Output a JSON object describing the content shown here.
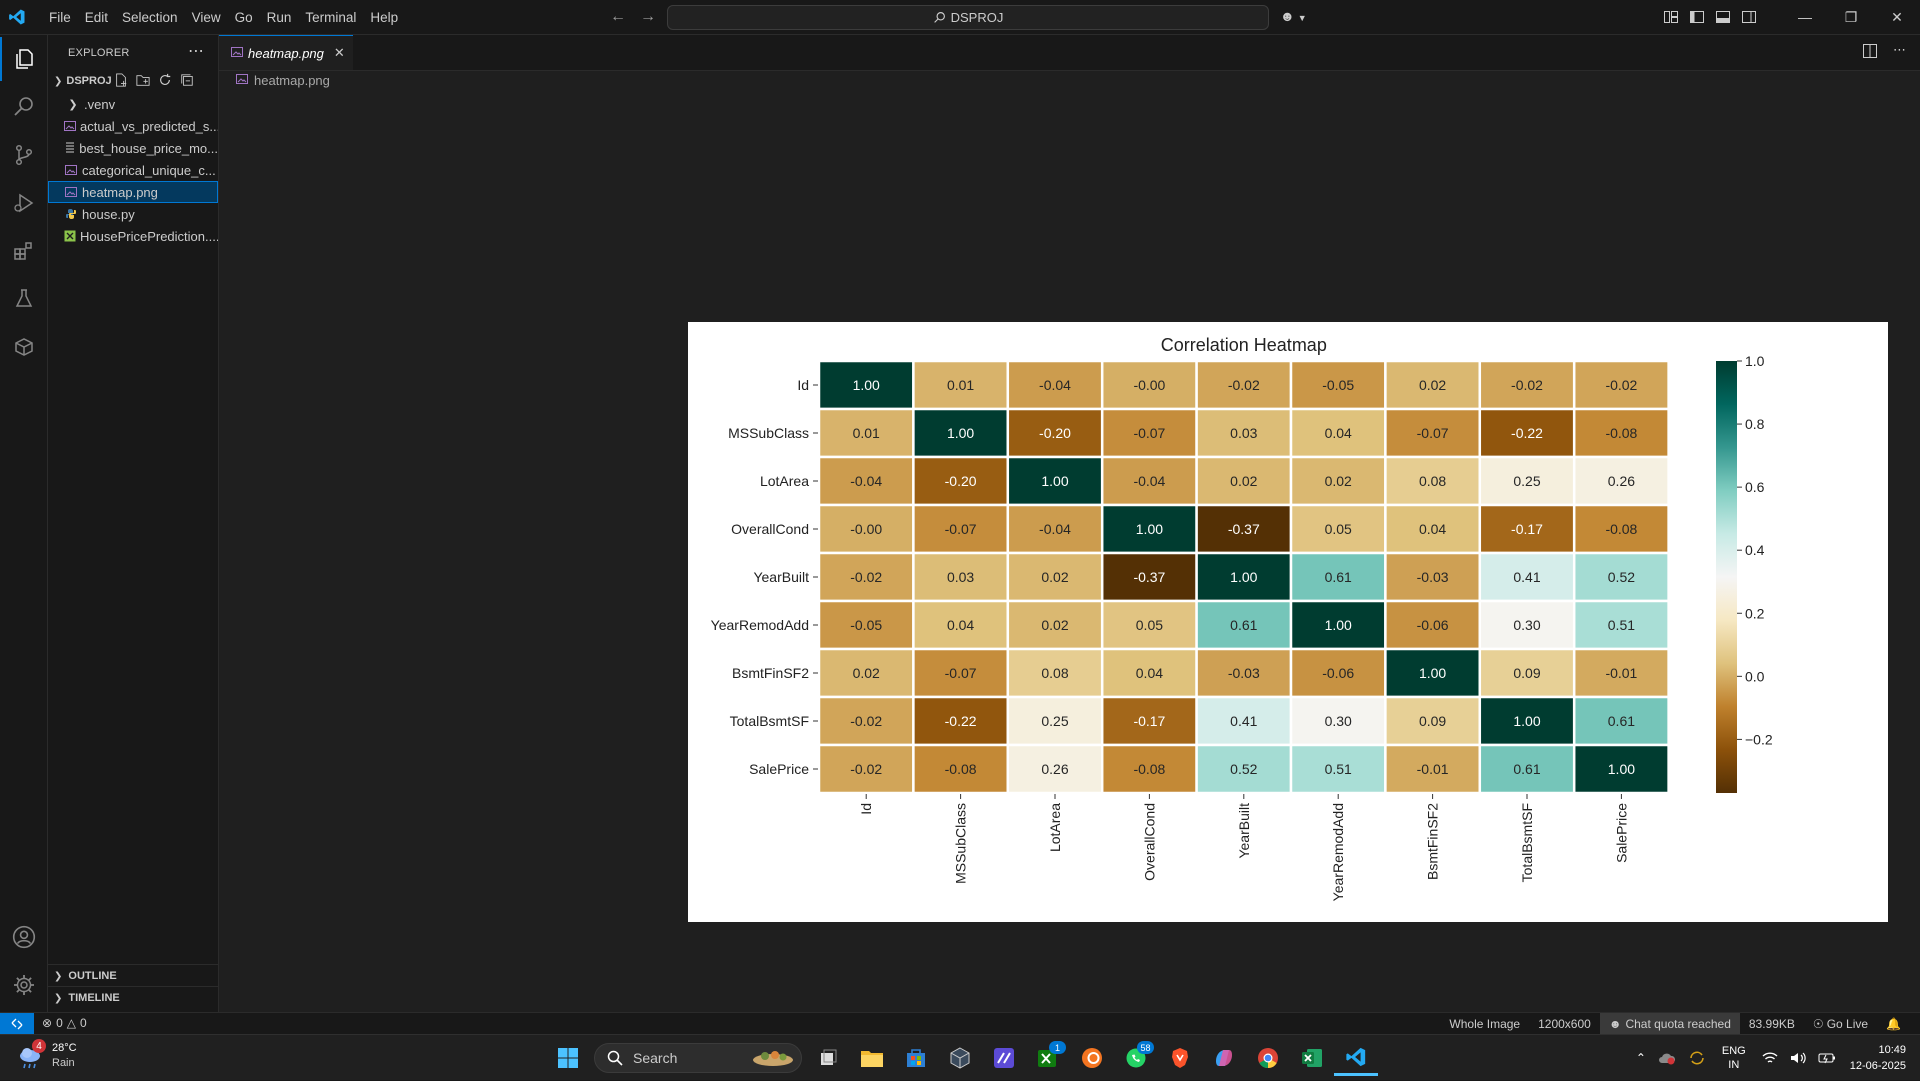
{
  "menu": [
    "File",
    "Edit",
    "Selection",
    "View",
    "Go",
    "Run",
    "Terminal",
    "Help"
  ],
  "command_center": "DSPROJ",
  "explorer": {
    "header": "EXPLORER",
    "project": "DSPROJ",
    "items": [
      {
        "label": ".venv",
        "type": "folder"
      },
      {
        "label": "actual_vs_predicted_s...",
        "type": "image"
      },
      {
        "label": "best_house_price_mo...",
        "type": "file"
      },
      {
        "label": "categorical_unique_c...",
        "type": "image"
      },
      {
        "label": "heatmap.png",
        "type": "image",
        "selected": true
      },
      {
        "label": "house.py",
        "type": "python"
      },
      {
        "label": "HousePricePrediction....",
        "type": "excel"
      }
    ],
    "sections": [
      "OUTLINE",
      "TIMELINE"
    ]
  },
  "tab": {
    "label": "heatmap.png"
  },
  "breadcrumb": "heatmap.png",
  "chart_data": {
    "type": "heatmap",
    "title": "Correlation Heatmap",
    "rows": [
      "Id",
      "MSSubClass",
      "LotArea",
      "OverallCond",
      "YearBuilt",
      "YearRemodAdd",
      "BsmtFinSF2",
      "TotalBsmtSF",
      "SalePrice"
    ],
    "columns": [
      "Id",
      "MSSubClass",
      "LotArea",
      "OverallCond",
      "YearBuilt",
      "YearRemodAdd",
      "BsmtFinSF2",
      "TotalBsmtSF",
      "SalePrice"
    ],
    "labels": [
      [
        "1.00",
        "0.01",
        "-0.04",
        "-0.00",
        "-0.02",
        "-0.05",
        "0.02",
        "-0.02",
        "-0.02"
      ],
      [
        "0.01",
        "1.00",
        "-0.20",
        "-0.07",
        "0.03",
        "0.04",
        "-0.07",
        "-0.22",
        "-0.08"
      ],
      [
        "-0.04",
        "-0.20",
        "1.00",
        "-0.04",
        "0.02",
        "0.02",
        "0.08",
        "0.25",
        "0.26"
      ],
      [
        "-0.00",
        "-0.07",
        "-0.04",
        "1.00",
        "-0.37",
        "0.05",
        "0.04",
        "-0.17",
        "-0.08"
      ],
      [
        "-0.02",
        "0.03",
        "0.02",
        "-0.37",
        "1.00",
        "0.61",
        "-0.03",
        "0.41",
        "0.52"
      ],
      [
        "-0.05",
        "0.04",
        "0.02",
        "0.05",
        "0.61",
        "1.00",
        "-0.06",
        "0.30",
        "0.51"
      ],
      [
        "0.02",
        "-0.07",
        "0.08",
        "0.04",
        "-0.03",
        "-0.06",
        "1.00",
        "0.09",
        "-0.01"
      ],
      [
        "-0.02",
        "-0.22",
        "0.25",
        "-0.17",
        "0.41",
        "0.30",
        "0.09",
        "1.00",
        "0.61"
      ],
      [
        "-0.02",
        "-0.08",
        "0.26",
        "-0.08",
        "0.52",
        "0.51",
        "-0.01",
        "0.61",
        "1.00"
      ]
    ],
    "colorbar": {
      "min": -0.37,
      "max": 1.0,
      "ticks": [
        1.0,
        0.8,
        0.6,
        0.4,
        0.2,
        0.0,
        -0.2
      ],
      "tick_labels": [
        "1.0",
        "0.8",
        "0.6",
        "0.4",
        "0.2",
        "0.0",
        "−0.2"
      ]
    },
    "colormap": "BrBG"
  },
  "status": {
    "errors": "0",
    "warnings": "0",
    "right": [
      "Whole Image",
      "1200x600",
      "Chat quota reached",
      "83.99KB",
      "Go Live"
    ]
  },
  "taskbar": {
    "weather_temp": "28°C",
    "weather_desc": "Rain",
    "weather_badge": "4",
    "search": "Search",
    "xbox_badge": "1",
    "whatsapp_badge": "58",
    "lang1": "ENG",
    "lang2": "IN",
    "time": "10:49",
    "date": "12-06-2025"
  },
  "colors": {
    "accent": "#0078d4",
    "editor_bg": "#1f1f1f",
    "chrome_bg": "#181818"
  }
}
